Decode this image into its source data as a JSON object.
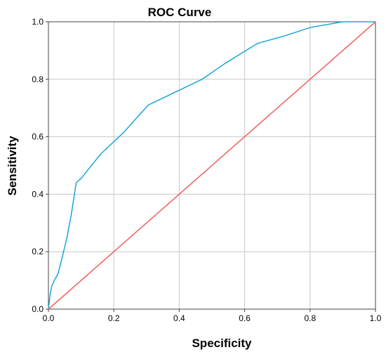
{
  "chart_data": {
    "type": "line",
    "title": "ROC Curve",
    "xlabel": "Specificity",
    "ylabel": "Sensitivity",
    "xlim": [
      0,
      1
    ],
    "ylim": [
      0,
      1
    ],
    "grid": true,
    "x_ticks": [
      "0.0",
      "0.2",
      "0.4",
      "0.6",
      "0.8",
      "1.0"
    ],
    "y_ticks": [
      "0.0",
      "0.2",
      "0.4",
      "0.6",
      "0.8",
      "1.0"
    ],
    "series": [
      {
        "color": "#1aa6d6",
        "x": [
          0.0,
          0.005,
          0.01,
          0.018,
          0.03,
          0.055,
          0.07,
          0.085,
          0.1,
          0.16,
          0.23,
          0.305,
          0.47,
          0.54,
          0.64,
          0.72,
          0.8,
          0.9,
          0.95,
          1.0
        ],
        "y": [
          0.0,
          0.05,
          0.08,
          0.1,
          0.125,
          0.24,
          0.33,
          0.44,
          0.455,
          0.54,
          0.615,
          0.71,
          0.8,
          0.855,
          0.925,
          0.95,
          0.98,
          1.0,
          1.0,
          1.0
        ]
      },
      {
        "color": "#f0605a",
        "x": [
          0.0,
          1.0
        ],
        "y": [
          0.0,
          1.0
        ]
      }
    ]
  }
}
